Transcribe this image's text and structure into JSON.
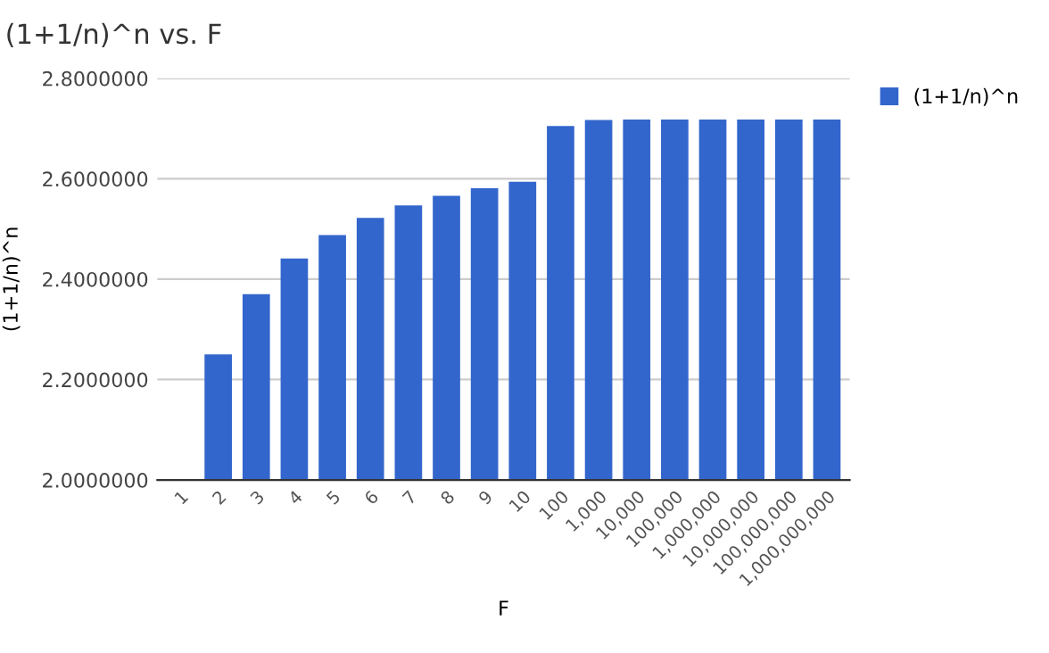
{
  "chart_data": {
    "type": "bar",
    "title": "(1+1/n)^n vs. F",
    "xlabel": "F",
    "ylabel": "(1+1/n)^n",
    "categories": [
      "1",
      "2",
      "3",
      "4",
      "5",
      "6",
      "7",
      "8",
      "9",
      "10",
      "100",
      "1,000",
      "10,000",
      "100,000",
      "1,000,000",
      "10,000,000",
      "100,000,000",
      "1,000,000,000"
    ],
    "series": [
      {
        "name": "(1+1/n)^n",
        "color": "#3366cc",
        "values": [
          2.0,
          2.25,
          2.37,
          2.441,
          2.488,
          2.522,
          2.547,
          2.566,
          2.581,
          2.594,
          2.705,
          2.717,
          2.718,
          2.718,
          2.718,
          2.718,
          2.718,
          2.718
        ]
      }
    ],
    "ylim": [
      2.0,
      2.8
    ],
    "yticks": [
      {
        "value": 2.0,
        "label": "2.0000000"
      },
      {
        "value": 2.2,
        "label": "2.2000000"
      },
      {
        "value": 2.4,
        "label": "2.4000000"
      },
      {
        "value": 2.6,
        "label": "2.6000000"
      },
      {
        "value": 2.8,
        "label": "2.8000000"
      }
    ],
    "grid": "y",
    "legend": "top right"
  }
}
